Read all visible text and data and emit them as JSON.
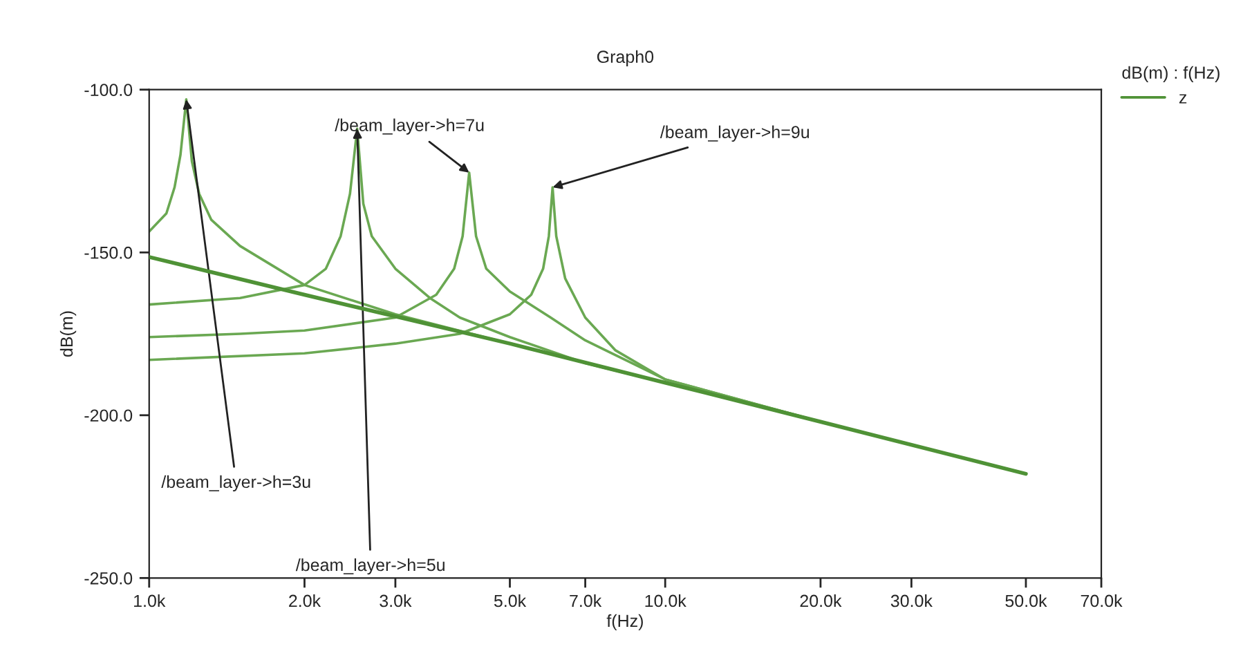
{
  "chart_data": {
    "type": "line",
    "title": "Graph0",
    "xlabel": "f(Hz)",
    "ylabel": "dB(m)",
    "legend_title": "dB(m) : f(Hz)",
    "log": "x",
    "grid": false,
    "legend": "right",
    "marker": "none",
    "line_style": "solid",
    "xlim": [
      1000,
      70000
    ],
    "ylim": [
      -250,
      -100
    ],
    "xticks": [
      {
        "value": 1000,
        "label": "1.0k"
      },
      {
        "value": 2000,
        "label": "2.0k"
      },
      {
        "value": 3000,
        "label": "3.0k"
      },
      {
        "value": 5000,
        "label": "5.0k"
      },
      {
        "value": 7000,
        "label": "7.0k"
      },
      {
        "value": 10000,
        "label": "10.0k"
      },
      {
        "value": 20000,
        "label": "20.0k"
      },
      {
        "value": 30000,
        "label": "30.0k"
      },
      {
        "value": 50000,
        "label": "50.0k"
      },
      {
        "value": 70000,
        "label": "70.0k"
      }
    ],
    "yticks": [
      {
        "value": -250,
        "label": "-250.0"
      },
      {
        "value": -200,
        "label": "-200.0"
      },
      {
        "value": -150,
        "label": "-150.0"
      },
      {
        "value": -100,
        "label": "-100.0"
      }
    ],
    "series": [
      {
        "name": "z",
        "color": "#4f9236",
        "x": [
          1000,
          2000,
          5000,
          10000,
          20000,
          50000
        ],
        "values": [
          -151.4,
          -163,
          -178,
          -190,
          -202,
          -218
        ]
      },
      {
        "color": "#6aa852",
        "x": [
          1000,
          1080,
          1120,
          1150,
          1180,
          1210,
          1250,
          1320,
          1500,
          2000,
          3000,
          5000,
          10000,
          20000,
          50000
        ],
        "values": [
          -143.6,
          -138,
          -130,
          -120,
          -103,
          -122,
          -132,
          -140,
          -148,
          -160,
          -169,
          -178,
          -190,
          -202,
          -218
        ]
      },
      {
        "color": "#6aa852",
        "x": [
          1000,
          1500,
          2000,
          2200,
          2350,
          2450,
          2530,
          2600,
          2700,
          3000,
          3500,
          4000,
          5000,
          7000,
          10000,
          20000,
          50000
        ],
        "values": [
          -166,
          -164,
          -160,
          -155,
          -145,
          -132,
          -112,
          -135,
          -145,
          -155,
          -164,
          -170,
          -176,
          -184,
          -190,
          -202,
          -218
        ]
      },
      {
        "color": "#6aa852",
        "x": [
          1000,
          1500,
          2000,
          3000,
          3600,
          3900,
          4050,
          4170,
          4300,
          4500,
          5000,
          6000,
          7000,
          10000,
          20000,
          50000
        ],
        "values": [
          -176,
          -175,
          -174,
          -170,
          -163,
          -155,
          -145,
          -125.5,
          -145,
          -155,
          -162,
          -170,
          -177,
          -189,
          -202,
          -218
        ]
      },
      {
        "color": "#6aa852",
        "x": [
          1000,
          2000,
          3000,
          4000,
          5000,
          5500,
          5800,
          5950,
          6050,
          6150,
          6400,
          7000,
          8000,
          10000,
          20000,
          50000
        ],
        "values": [
          -183,
          -181,
          -178,
          -175,
          -169,
          -163,
          -155,
          -145,
          -130,
          -145,
          -158,
          -170,
          -180,
          -189,
          -202,
          -218
        ]
      }
    ],
    "annotations": [
      {
        "text": "/beam_layer->h=3u",
        "x": 1180,
        "y": -103
      },
      {
        "text": "/beam_layer->h=5u",
        "x": 2530,
        "y": -112
      },
      {
        "text": "/beam_layer->h=7u",
        "x": 4170,
        "y": -125.5
      },
      {
        "text": "/beam_layer->h=9u",
        "x": 6050,
        "y": -130
      }
    ]
  }
}
